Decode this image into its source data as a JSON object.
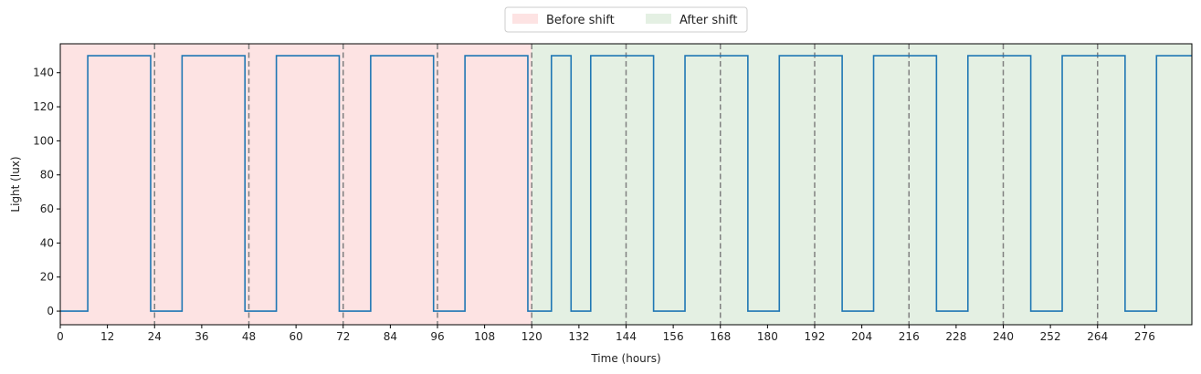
{
  "chart_data": {
    "type": "line",
    "title": "",
    "xlabel": "Time (hours)",
    "ylabel": "Light (lux)",
    "xlim": [
      0,
      288
    ],
    "ylim": [
      -8,
      157
    ],
    "xticks": [
      0,
      12,
      24,
      36,
      48,
      60,
      72,
      84,
      96,
      108,
      120,
      132,
      144,
      156,
      168,
      180,
      192,
      204,
      216,
      228,
      240,
      252,
      264,
      276
    ],
    "yticks": [
      0,
      20,
      40,
      60,
      80,
      100,
      120,
      140
    ],
    "grid": false,
    "legend_position": "top-center",
    "regions": [
      {
        "name": "Before shift",
        "x_start": 0,
        "x_end": 120,
        "color": "#fde3e3"
      },
      {
        "name": "After shift",
        "x_start": 120,
        "x_end": 288,
        "color": "#e4f0e3"
      }
    ],
    "vlines": [
      24,
      48,
      72,
      96,
      120,
      144,
      168,
      192,
      216,
      240,
      264
    ],
    "vline_color": "#808080",
    "series": [
      {
        "color": "#1f77b4",
        "step_points": [
          [
            0,
            0
          ],
          [
            7,
            0
          ],
          [
            7,
            150
          ],
          [
            23,
            150
          ],
          [
            23,
            0
          ],
          [
            31,
            0
          ],
          [
            31,
            150
          ],
          [
            47,
            150
          ],
          [
            47,
            0
          ],
          [
            55,
            0
          ],
          [
            55,
            150
          ],
          [
            71,
            150
          ],
          [
            71,
            0
          ],
          [
            79,
            0
          ],
          [
            79,
            150
          ],
          [
            95,
            150
          ],
          [
            95,
            0
          ],
          [
            103,
            0
          ],
          [
            103,
            150
          ],
          [
            119,
            150
          ],
          [
            119,
            0
          ],
          [
            125,
            0
          ],
          [
            125,
            150
          ],
          [
            130,
            150
          ],
          [
            130,
            0
          ],
          [
            135,
            0
          ],
          [
            135,
            150
          ],
          [
            151,
            150
          ],
          [
            151,
            0
          ],
          [
            159,
            0
          ],
          [
            159,
            150
          ],
          [
            175,
            150
          ],
          [
            175,
            0
          ],
          [
            183,
            0
          ],
          [
            183,
            150
          ],
          [
            199,
            150
          ],
          [
            199,
            0
          ],
          [
            207,
            0
          ],
          [
            207,
            150
          ],
          [
            223,
            150
          ],
          [
            223,
            0
          ],
          [
            231,
            0
          ],
          [
            231,
            150
          ],
          [
            247,
            150
          ],
          [
            247,
            0
          ],
          [
            255,
            0
          ],
          [
            255,
            150
          ],
          [
            271,
            150
          ],
          [
            271,
            0
          ],
          [
            279,
            0
          ],
          [
            279,
            150
          ],
          [
            288,
            150
          ]
        ]
      }
    ]
  }
}
